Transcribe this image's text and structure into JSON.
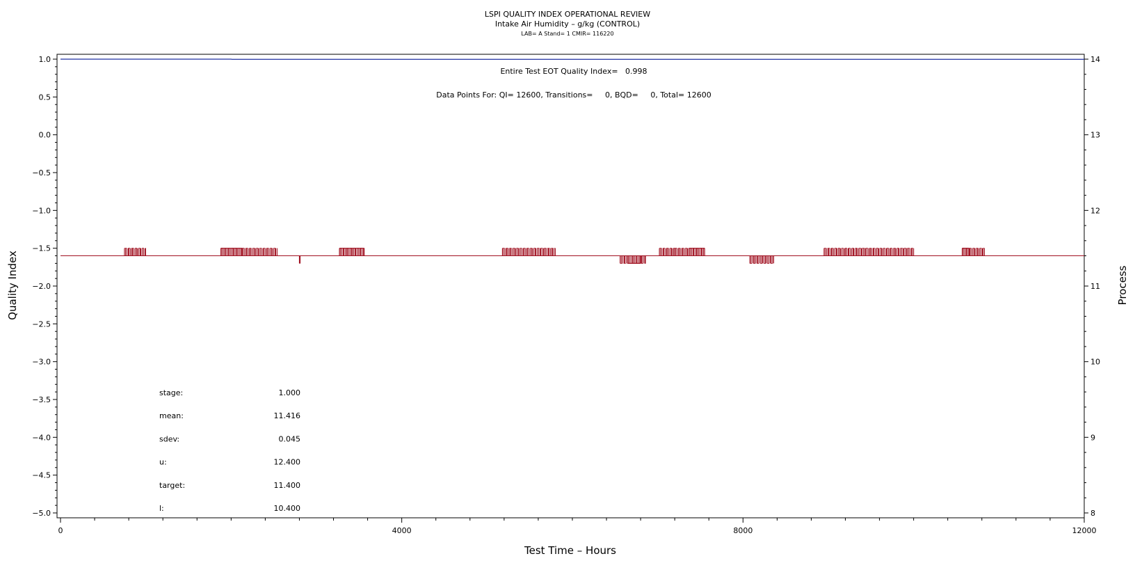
{
  "chart_data": {
    "type": "line",
    "title": "LSPI QUALITY INDEX OPERATIONAL REVIEW",
    "subtitle": "Intake Air Humidity – g/kg (CONTROL)",
    "subtitle2": "LAB= A Stand= 1 CMIR= 116220",
    "xlabel": "Test Time – Hours",
    "ylabel_left": "Quality Index",
    "ylabel_right": "Process",
    "xlim": [
      0,
      12000
    ],
    "ylim_left": [
      -5.0,
      1.0
    ],
    "ylim_right": [
      8,
      14
    ],
    "x_ticks": [
      "0",
      "4000",
      "8000",
      "12000"
    ],
    "y_left_ticks": [
      "1.0",
      "0.5",
      "0.0",
      "−0.5",
      "−1.0",
      "−1.5",
      "−2.0",
      "−2.5",
      "−3.0",
      "−3.5",
      "−4.0",
      "−4.5",
      "−5.0"
    ],
    "y_right_ticks": [
      "14",
      "13",
      "12",
      "11",
      "10",
      "9",
      "8"
    ],
    "grid": false,
    "annotations": [
      "Entire Test EOT Quality Index=   0.998",
      "Data Points For: QI= 12600, Transitions=     0, BQD=     0, Total= 12600"
    ],
    "series": [
      {
        "axis": "left",
        "color": "#1f2fa0",
        "points": [
          [
            0,
            1.0
          ],
          [
            2000,
            1.0
          ],
          [
            2010,
            0.998
          ],
          [
            12000,
            0.998
          ]
        ]
      },
      {
        "axis": "right",
        "color": "#a01020",
        "baseline": 11.4,
        "high": 11.5,
        "low": 11.3,
        "high_bursts": [
          [
            750,
            1000
          ],
          [
            1880,
            2130
          ],
          [
            2130,
            2540
          ],
          [
            3270,
            3560
          ],
          [
            5180,
            5800
          ],
          [
            7020,
            7200
          ],
          [
            7200,
            7370
          ],
          [
            7370,
            7550
          ],
          [
            8950,
            10000
          ],
          [
            10570,
            10830
          ]
        ],
        "high_blocks": [
          [
            1880,
            2130
          ],
          [
            3270,
            3560
          ],
          [
            7370,
            7550
          ],
          [
            10570,
            10650
          ]
        ],
        "low_bursts": [
          [
            2800,
            2810
          ],
          [
            6560,
            6860
          ],
          [
            8080,
            8360
          ]
        ],
        "low_blocks": [
          [
            6650,
            6800
          ]
        ]
      }
    ],
    "stats": [
      {
        "label": "stage:",
        "value": "1.000"
      },
      {
        "label": "mean:",
        "value": "11.416"
      },
      {
        "label": "sdev:",
        "value": "0.045"
      },
      {
        "label": "u:",
        "value": "12.400"
      },
      {
        "label": "target:",
        "value": "11.400"
      },
      {
        "label": "l:",
        "value": "10.400"
      }
    ]
  }
}
